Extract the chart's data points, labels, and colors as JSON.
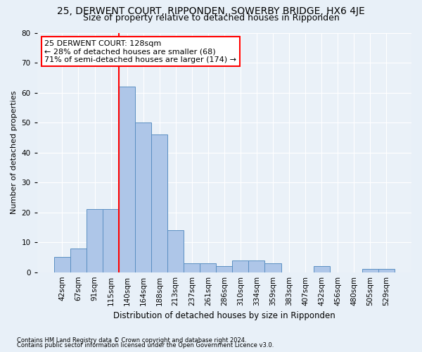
{
  "title": "25, DERWENT COURT, RIPPONDEN, SOWERBY BRIDGE, HX6 4JE",
  "subtitle": "Size of property relative to detached houses in Ripponden",
  "xlabel": "Distribution of detached houses by size in Ripponden",
  "ylabel": "Number of detached properties",
  "categories": [
    "42sqm",
    "67sqm",
    "91sqm",
    "115sqm",
    "140sqm",
    "164sqm",
    "188sqm",
    "213sqm",
    "237sqm",
    "261sqm",
    "286sqm",
    "310sqm",
    "334sqm",
    "359sqm",
    "383sqm",
    "407sqm",
    "432sqm",
    "456sqm",
    "480sqm",
    "505sqm",
    "529sqm"
  ],
  "values": [
    5,
    8,
    21,
    21,
    62,
    50,
    46,
    14,
    3,
    3,
    2,
    4,
    4,
    3,
    0,
    0,
    2,
    0,
    0,
    1,
    1
  ],
  "bar_color": "#aec6e8",
  "bar_edge_color": "#5a8fc2",
  "property_sqm": 128,
  "annotation_line": "25 DERWENT COURT: 128sqm",
  "annotation_line2": "← 28% of detached houses are smaller (68)",
  "annotation_line3": "71% of semi-detached houses are larger (174) →",
  "annotation_box_color": "white",
  "annotation_box_edge_color": "red",
  "property_line_color": "red",
  "prop_line_bar_index": 4,
  "ylim": [
    0,
    80
  ],
  "yticks": [
    0,
    10,
    20,
    30,
    40,
    50,
    60,
    70,
    80
  ],
  "bg_color": "#e8f0f8",
  "plot_bg_color": "#eaf1f8",
  "grid_color": "white",
  "footnote1": "Contains HM Land Registry data © Crown copyright and database right 2024.",
  "footnote2": "Contains public sector information licensed under the Open Government Licence v3.0.",
  "title_fontsize": 10,
  "subtitle_fontsize": 9,
  "xlabel_fontsize": 8.5,
  "ylabel_fontsize": 8,
  "annotation_fontsize": 8,
  "tick_fontsize": 7.5,
  "footnote_fontsize": 6
}
